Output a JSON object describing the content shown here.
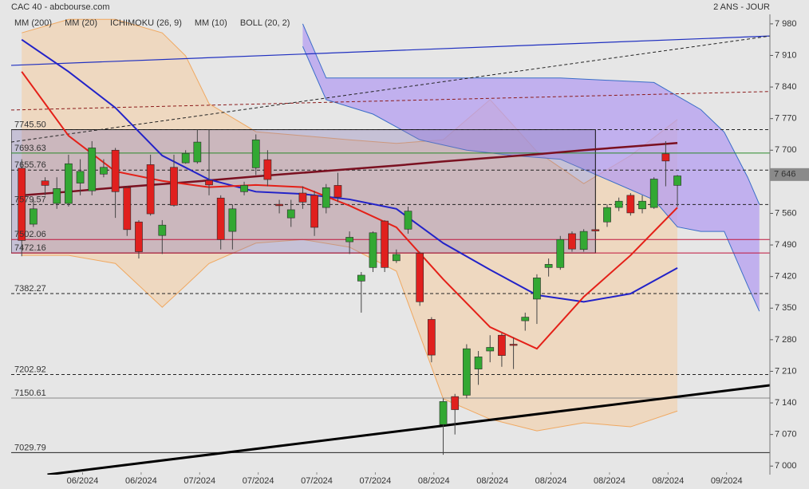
{
  "chart_data": {
    "type": "candlestick",
    "title": "CAC 40 - abcbourse.com",
    "subtitle": "2 ANS - JOUR",
    "xlim": [
      -0.9,
      63.9
    ],
    "ylim": [
      6981,
      8001
    ],
    "yticks": [
      {
        "value": 7000,
        "label": "7 000"
      },
      {
        "value": 7070,
        "label": "7 070"
      },
      {
        "value": 7140,
        "label": "7 140"
      },
      {
        "value": 7210,
        "label": "7 210"
      },
      {
        "value": 7280,
        "label": "7 280"
      },
      {
        "value": 7350,
        "label": "7 350"
      },
      {
        "value": 7420,
        "label": "7 420"
      },
      {
        "value": 7490,
        "label": "7 490"
      },
      {
        "value": 7560,
        "label": "7 560"
      },
      {
        "value": 7700,
        "label": "7 700"
      },
      {
        "value": 7770,
        "label": "7 770"
      },
      {
        "value": 7840,
        "label": "7 840"
      },
      {
        "value": 7910,
        "label": "7 910"
      },
      {
        "value": 7980,
        "label": "7 980"
      }
    ],
    "xticks": [
      {
        "value": 5.2,
        "label": "06/2024"
      },
      {
        "value": 10.2,
        "label": "06/2024"
      },
      {
        "value": 15.2,
        "label": "07/2024"
      },
      {
        "value": 20.2,
        "label": "07/2024"
      },
      {
        "value": 25.2,
        "label": "07/2024"
      },
      {
        "value": 30.2,
        "label": "07/2024"
      },
      {
        "value": 35.2,
        "label": "08/2024"
      },
      {
        "value": 40.2,
        "label": "08/2024"
      },
      {
        "value": 45.2,
        "label": "08/2024"
      },
      {
        "value": 50.2,
        "label": "08/2024"
      },
      {
        "value": 55.2,
        "label": "08/2024"
      },
      {
        "value": 60.2,
        "label": "09/2024"
      }
    ],
    "up_color": "#33a833",
    "down_color": "#e0201e",
    "candles": {
      "open": [
        7660,
        7536,
        7632,
        7582,
        7582,
        7627,
        7610,
        7647,
        7700,
        7617,
        7541,
        7668,
        7511,
        7662,
        7672,
        7674,
        7633,
        7594,
        7520,
        7608,
        7661,
        7679,
        7580,
        7550,
        7605,
        7600,
        7573,
        7622,
        7497,
        7410,
        7440,
        7543,
        7455,
        7525,
        7472,
        7325,
        7092,
        7154,
        7157,
        7215,
        7255,
        7290,
        7270,
        7322,
        7370,
        7440,
        7440,
        7515,
        7480,
        7524,
        7541,
        7573,
        7600,
        7570,
        7573,
        7692,
        7622
      ],
      "high": [
        7680,
        7590,
        7640,
        7640,
        7690,
        7680,
        7720,
        7680,
        7705,
        7620,
        7545,
        7690,
        7545,
        7690,
        7700,
        7745,
        7745,
        7600,
        7580,
        7630,
        7735,
        7700,
        7590,
        7590,
        7620,
        7610,
        7625,
        7650,
        7520,
        7430,
        7520,
        7545,
        7480,
        7575,
        7475,
        7330,
        7150,
        7160,
        7270,
        7255,
        7290,
        7295,
        7285,
        7340,
        7425,
        7460,
        7510,
        7520,
        7525,
        7525,
        7580,
        7595,
        7605,
        7600,
        7640,
        7720,
        7645
      ],
      "low": [
        7465,
        7530,
        7600,
        7570,
        7575,
        7600,
        7600,
        7640,
        7550,
        7510,
        7460,
        7555,
        7470,
        7575,
        7670,
        7670,
        7600,
        7480,
        7480,
        7600,
        7645,
        7620,
        7560,
        7530,
        7570,
        7510,
        7560,
        7585,
        7470,
        7340,
        7430,
        7430,
        7450,
        7515,
        7355,
        7230,
        7025,
        7070,
        7150,
        7180,
        7230,
        7220,
        7215,
        7300,
        7315,
        7420,
        7435,
        7475,
        7475,
        7518,
        7530,
        7565,
        7555,
        7560,
        7570,
        7620,
        7575
      ],
      "close": [
        7500,
        7570,
        7622,
        7615,
        7670,
        7653,
        7705,
        7662,
        7608,
        7524,
        7475,
        7559,
        7534,
        7578,
        7693,
        7718,
        7623,
        7502,
        7570,
        7622,
        7723,
        7635,
        7577,
        7568,
        7585,
        7529,
        7617,
        7596,
        7507,
        7423,
        7517,
        7440,
        7469,
        7565,
        7364,
        7246,
        7143,
        7125,
        7260,
        7242,
        7263,
        7245,
        7268,
        7330,
        7417,
        7447,
        7502,
        7481,
        7520,
        7521,
        7573,
        7587,
        7561,
        7587,
        7636,
        7676,
        7643
      ]
    },
    "series": [
      {
        "name": "MM (200)",
        "color": "#7a1020",
        "x": [
          0,
          4,
          8,
          12,
          16,
          20,
          24,
          28,
          32,
          36,
          40,
          44,
          48,
          52,
          56
        ],
        "values": [
          7600,
          7608,
          7617,
          7625,
          7633,
          7642,
          7650,
          7658,
          7666,
          7675,
          7683,
          7691,
          7700,
          7708,
          7716
        ]
      },
      {
        "name": "MM (20)",
        "color": "#2222c8",
        "x": [
          0,
          4,
          8,
          12,
          16,
          20,
          24,
          28,
          32,
          36,
          40,
          44,
          48,
          52,
          56
        ],
        "values": [
          7945,
          7874,
          7794,
          7688,
          7635,
          7608,
          7603,
          7591,
          7570,
          7494,
          7435,
          7379,
          7364,
          7382,
          7439
        ]
      },
      {
        "name": "ICHIMOKU (26, 9)",
        "color": "#3a6ec8",
        "x": [
          24,
          26,
          30,
          34,
          38,
          42,
          46,
          50,
          54,
          56,
          58,
          60,
          62,
          63
        ],
        "upper": [
          7980,
          7860,
          7860,
          7860,
          7860,
          7860,
          7860,
          7855,
          7850,
          7820,
          7790,
          7740,
          7640,
          7580
        ],
        "lower": [
          7930,
          7812,
          7780,
          7723,
          7700,
          7688,
          7680,
          7635,
          7590,
          7530,
          7520,
          7520,
          7400,
          7343
        ]
      },
      {
        "name": "MM (10)",
        "color": "#e42018",
        "x": [
          0,
          4,
          8,
          12,
          16,
          20,
          24,
          28,
          32,
          36,
          40,
          44,
          48,
          52,
          56
        ],
        "values": [
          7874,
          7732,
          7653,
          7632,
          7618,
          7623,
          7618,
          7577,
          7529,
          7414,
          7308,
          7260,
          7375,
          7467,
          7573
        ]
      },
      {
        "name": "BOLL (20, 2)",
        "color": "#f0a860",
        "x": [
          0,
          4,
          8,
          12,
          14,
          16,
          20,
          24,
          28,
          32,
          36,
          40,
          44,
          48,
          52,
          56
        ],
        "upper": [
          7960,
          7990,
          7990,
          7960,
          7909,
          7803,
          7741,
          7732,
          7723,
          7715,
          7723,
          7812,
          7697,
          7626,
          7688,
          7768
        ],
        "lower": [
          7467,
          7467,
          7449,
          7352,
          7400,
          7449,
          7494,
          7502,
          7485,
          7432,
          7149,
          7104,
          7078,
          7096,
          7087,
          7122
        ]
      }
    ],
    "levels": [
      {
        "value": 7745.5,
        "label": "7745.50",
        "color": "#222222",
        "style": "dashed"
      },
      {
        "value": 7693.63,
        "color": "#2a8a2a",
        "style": "solid"
      },
      {
        "value": 7655.76,
        "color": "#222222",
        "style": "dashed"
      },
      {
        "value": 7579.57,
        "color": "#222222",
        "style": "dashed"
      },
      {
        "value": 7502.06,
        "color": "#c0143c",
        "style": "solid"
      },
      {
        "value": 7472.16,
        "color": "#c0143c",
        "style": "solid"
      },
      {
        "value": 7382.27,
        "color": "#222222",
        "style": "dashed"
      },
      {
        "value": 7202.92,
        "color": "#222222",
        "style": "dashed"
      },
      {
        "value": 7150.61,
        "color": "#888888",
        "style": "solid"
      },
      {
        "value": 7029.79,
        "color": "#222222",
        "style": "solid"
      }
    ],
    "zone_x": [
      -0.9,
      49
    ],
    "trendlines": [
      {
        "x": [
          -0.9,
          63.9
        ],
        "values": [
          7888,
          7953
        ],
        "color": "#2030c0",
        "style": "solid",
        "width": 1.2
      },
      {
        "x": [
          -0.9,
          63.9
        ],
        "values": [
          7718,
          7953
        ],
        "color": "#222222",
        "style": "dashed",
        "width": 1
      },
      {
        "x": [
          -0.9,
          63.9
        ],
        "values": [
          7789,
          7830
        ],
        "color": "#8b1a1a",
        "style": "dashed",
        "width": 1
      },
      {
        "x": [
          2.2,
          63.9
        ],
        "values": [
          6981,
          7179
        ],
        "color": "#000000",
        "style": "solid",
        "width": 3
      }
    ],
    "last_price": {
      "value": 7646,
      "label": "7 646"
    }
  }
}
